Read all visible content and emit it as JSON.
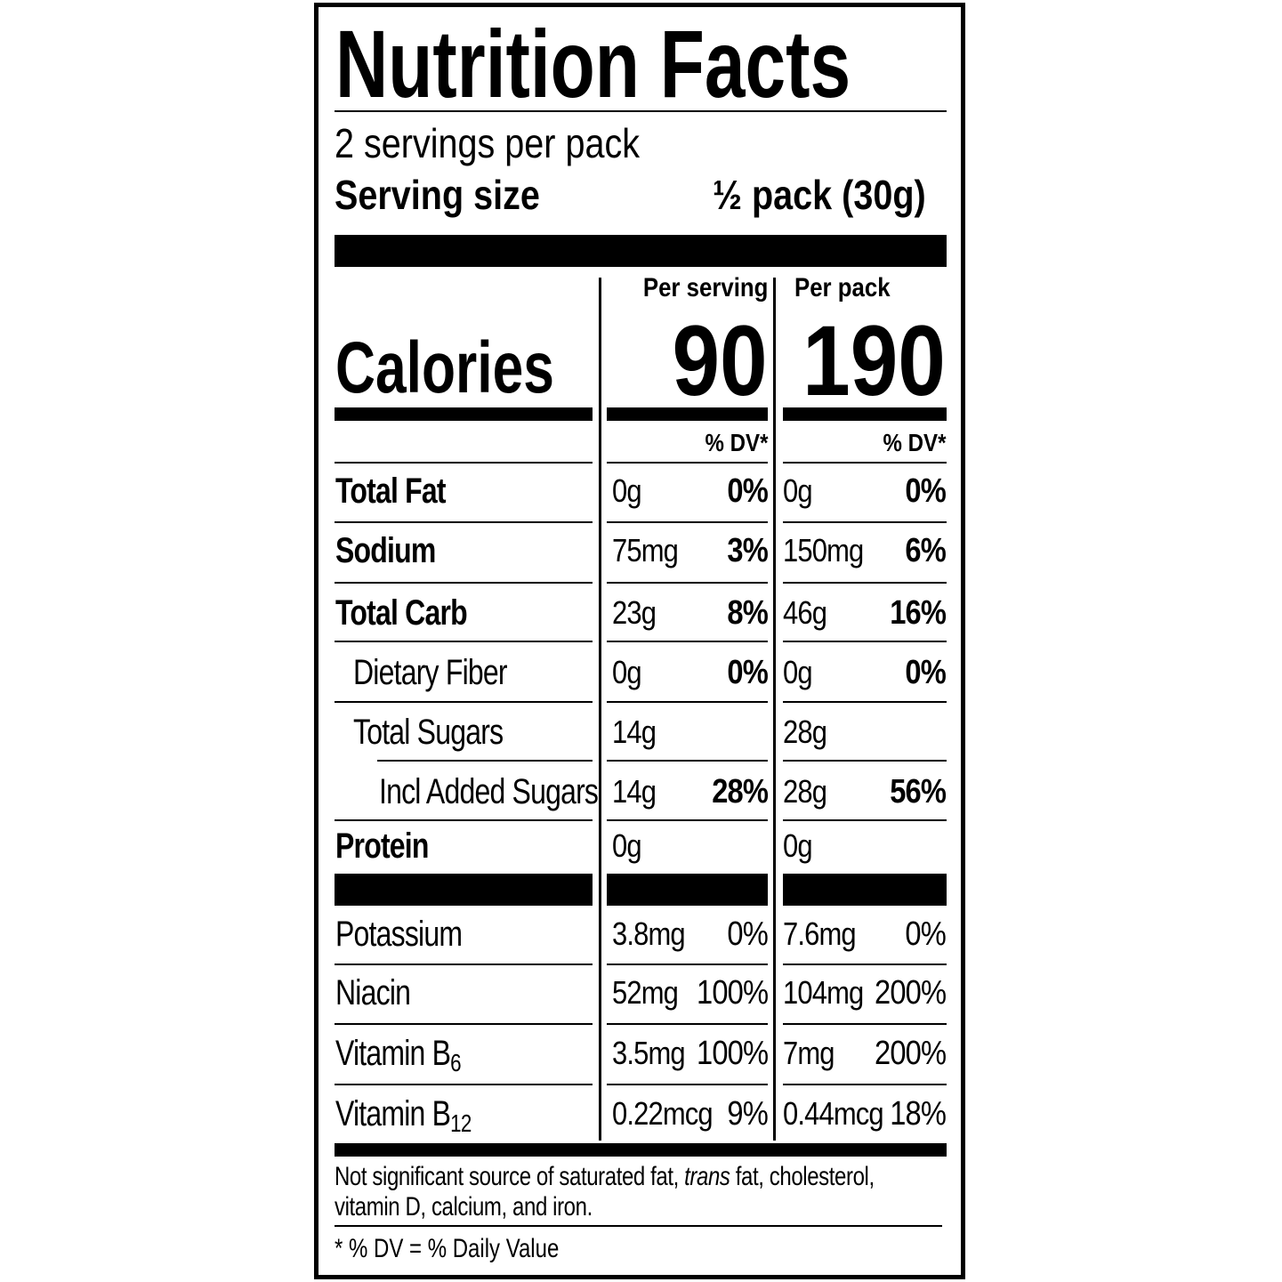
{
  "title": "Nutrition Facts",
  "servings_per_container": "2 servings per pack",
  "serving_size_label": "Serving size",
  "serving_size_value": "½ pack (30g)",
  "columns": {
    "per_serving": "Per serving",
    "per_pack": "Per pack",
    "dv_header": "% DV*"
  },
  "calories": {
    "label": "Calories",
    "per_serving": "90",
    "per_pack": "190"
  },
  "nutrients": [
    {
      "label": "Total Fat",
      "bold": true,
      "indent": 0,
      "serving_amount": "0g",
      "serving_dv": "0%",
      "pack_amount": "0g",
      "pack_dv": "0%"
    },
    {
      "label": "Sodium",
      "bold": true,
      "indent": 0,
      "serving_amount": "75mg",
      "serving_dv": "3%",
      "pack_amount": "150mg",
      "pack_dv": "6%"
    },
    {
      "label": "Total Carb",
      "bold": true,
      "indent": 0,
      "serving_amount": "23g",
      "serving_dv": "8%",
      "pack_amount": "46g",
      "pack_dv": "16%"
    },
    {
      "label": "Dietary Fiber",
      "bold": false,
      "indent": 1,
      "serving_amount": "0g",
      "serving_dv": "0%",
      "pack_amount": "0g",
      "pack_dv": "0%"
    },
    {
      "label": "Total Sugars",
      "bold": false,
      "indent": 1,
      "serving_amount": "14g",
      "serving_dv": "",
      "pack_amount": "28g",
      "pack_dv": ""
    },
    {
      "label": "Incl Added Sugars",
      "bold": false,
      "indent": 2,
      "serving_amount": "14g",
      "serving_dv": "28%",
      "pack_amount": "28g",
      "pack_dv": "56%"
    },
    {
      "label": "Protein",
      "bold": true,
      "indent": 0,
      "serving_amount": "0g",
      "serving_dv": "",
      "pack_amount": "0g",
      "pack_dv": ""
    }
  ],
  "vitamins": [
    {
      "label": "Potassium",
      "sub": "",
      "serving_amount": "3.8mg",
      "serving_dv": "0%",
      "pack_amount": "7.6mg",
      "pack_dv": "0%"
    },
    {
      "label": "Niacin",
      "sub": "",
      "serving_amount": "52mg",
      "serving_dv": "100%",
      "pack_amount": "104mg",
      "pack_dv": "200%"
    },
    {
      "label": "Vitamin B",
      "sub": "6",
      "serving_amount": "3.5mg",
      "serving_dv": "100%",
      "pack_amount": "7mg",
      "pack_dv": "200%"
    },
    {
      "label": "Vitamin B",
      "sub": "12",
      "serving_amount": "0.22mcg",
      "serving_dv": "9%",
      "pack_amount": "0.44mcg",
      "pack_dv": "18%"
    }
  ],
  "footnote": {
    "pre": "Not significant source of saturated fat, ",
    "italic": "trans",
    "post": " fat, cholesterol,",
    "line2": "vitamin D, calcium, and iron."
  },
  "dv_note": "* % DV = % Daily Value"
}
